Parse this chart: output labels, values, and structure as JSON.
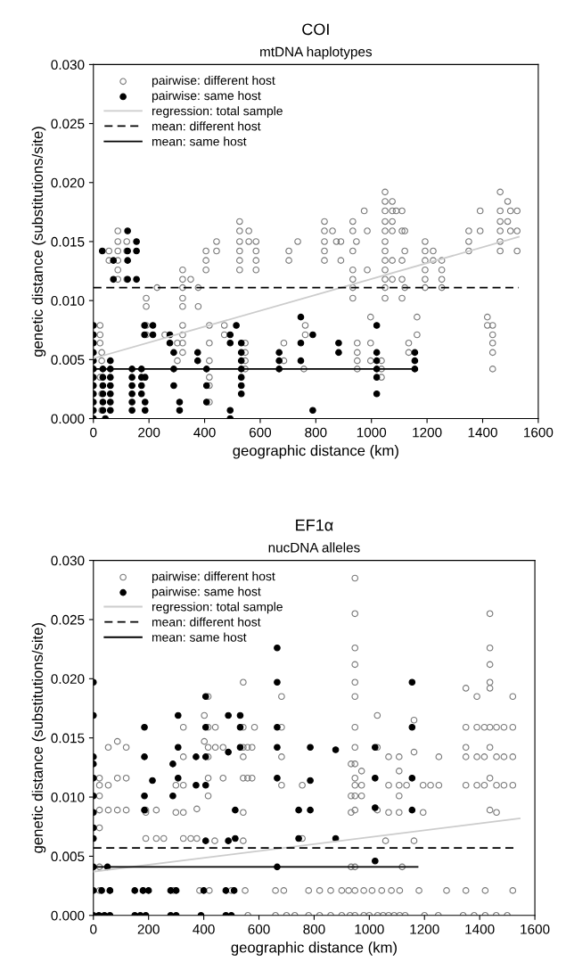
{
  "chart_data": [
    {
      "type": "scatter",
      "title": "COI",
      "subtitle": "mtDNA haplotypes",
      "xlabel": "geographic distance (km)",
      "ylabel": "genetic distance (substitutions/site)",
      "xlim": [
        0,
        1600
      ],
      "xticks": [
        0,
        200,
        400,
        600,
        800,
        1000,
        1200,
        1400,
        1600
      ],
      "ylim": [
        0,
        0.03
      ],
      "yticks": [
        {
          "value": 0,
          "label": "0.000"
        },
        {
          "value": 0.005,
          "label": "0.005"
        },
        {
          "value": 0.01,
          "label": "0.010"
        },
        {
          "value": 0.015,
          "label": "0.015"
        },
        {
          "value": 0.02,
          "label": "0.020"
        },
        {
          "value": 0.025,
          "label": "0.025"
        },
        {
          "value": 0.03,
          "label": "0.030"
        }
      ],
      "grid": false,
      "legend": "top left",
      "series": [
        {
          "name": "pairwise: different host",
          "marker": "circle",
          "color": "#7a7a7a",
          "x": [
            24,
            24,
            24,
            30,
            30,
            24,
            30,
            30,
            56,
            56,
            88,
            88,
            88,
            88,
            88,
            88,
            120,
            120,
            120,
            190,
            190,
            190,
            190,
            229,
            257,
            302,
            302,
            321,
            321,
            321,
            321,
            321,
            321,
            321,
            321,
            321,
            350,
            377,
            377,
            405,
            405,
            405,
            443,
            443,
            417,
            417,
            417,
            417,
            417,
            417,
            471,
            471,
            526,
            526,
            526,
            526,
            526,
            526,
            559,
            559,
            585,
            585,
            585,
            585,
            546,
            546,
            546,
            546,
            685,
            685,
            703,
            703,
            735,
            762,
            762,
            757,
            831,
            831,
            831,
            831,
            831,
            860,
            874,
            890,
            890,
            933,
            933,
            933,
            933,
            933,
            933,
            933,
            946,
            974,
            985,
            985,
            949,
            949,
            949,
            949,
            997,
            997,
            997,
            1049,
            1049,
            1049,
            1049,
            1049,
            1049,
            1049,
            1049,
            1049,
            1049,
            1049,
            1049,
            1075,
            1075,
            1075,
            1075,
            1075,
            1075,
            1089,
            1110,
            1110,
            1110,
            1110,
            1110,
            1120,
            1120,
            1120,
            1036,
            1036,
            1036,
            1134,
            1134,
            1164,
            1164,
            1193,
            1193,
            1193,
            1193,
            1193,
            1193,
            1222,
            1222,
            1253,
            1253,
            1253,
            1253,
            1350,
            1350,
            1350,
            1391,
            1391,
            1417,
            1417,
            1436,
            1436,
            1436,
            1436,
            1436,
            1463,
            1463,
            1463,
            1463,
            1463,
            1463,
            1490,
            1490,
            1500,
            1500,
            1524,
            1524,
            1524
          ],
          "values": [
            0.0079,
            0.0071,
            0.0064,
            0.0056,
            0.0049,
            0.0035,
            0.0021,
            0.0007,
            0.0142,
            0.0134,
            0.0159,
            0.015,
            0.0142,
            0.0134,
            0.0126,
            0.0118,
            0.015,
            0.0142,
            0.0118,
            0.0102,
            0.0095,
            0.0079,
            0.0071,
            0.0111,
            0.0071,
            0.0064,
            0.0049,
            0.0126,
            0.0118,
            0.0111,
            0.0102,
            0.0095,
            0.0079,
            0.0071,
            0.0064,
            0.0056,
            0.0118,
            0.0111,
            0.0095,
            0.0142,
            0.0134,
            0.0126,
            0.015,
            0.0142,
            0.0079,
            0.0064,
            0.0049,
            0.0035,
            0.0028,
            0.0014,
            0.0079,
            0.0071,
            0.0167,
            0.0159,
            0.015,
            0.0142,
            0.0134,
            0.0126,
            0.0159,
            0.015,
            0.015,
            0.0142,
            0.0134,
            0.0126,
            0.0064,
            0.0056,
            0.0049,
            0.0042,
            0.0064,
            0.0049,
            0.0142,
            0.0134,
            0.015,
            0.0079,
            0.0071,
            0.0042,
            0.0167,
            0.0159,
            0.015,
            0.0142,
            0.0134,
            0.0159,
            0.015,
            0.015,
            0.0134,
            0.0167,
            0.0159,
            0.0142,
            0.0126,
            0.0118,
            0.0111,
            0.0102,
            0.015,
            0.0176,
            0.0159,
            0.0126,
            0.0064,
            0.0056,
            0.0049,
            0.0042,
            0.0086,
            0.0064,
            0.0049,
            0.0192,
            0.0184,
            0.0176,
            0.0167,
            0.0159,
            0.015,
            0.0142,
            0.0134,
            0.0126,
            0.0118,
            0.0111,
            0.0102,
            0.0184,
            0.0176,
            0.0167,
            0.0159,
            0.0134,
            0.0118,
            0.0176,
            0.0176,
            0.0159,
            0.0134,
            0.0118,
            0.0102,
            0.0159,
            0.0142,
            0.0111,
            0.0049,
            0.0042,
            0.0035,
            0.0064,
            0.0056,
            0.0086,
            0.0071,
            0.015,
            0.0142,
            0.0134,
            0.0126,
            0.0118,
            0.0111,
            0.0142,
            0.0134,
            0.0134,
            0.0126,
            0.0118,
            0.0111,
            0.0159,
            0.015,
            0.0142,
            0.0176,
            0.0159,
            0.0086,
            0.0079,
            0.0079,
            0.0071,
            0.0064,
            0.0056,
            0.0042,
            0.0192,
            0.0176,
            0.0167,
            0.0159,
            0.015,
            0.0142,
            0.0184,
            0.0167,
            0.0176,
            0.0159,
            0.0176,
            0.0159,
            0.0142
          ]
        },
        {
          "name": "pairwise: same host",
          "marker": "circle",
          "color": "#000000",
          "x": [
            0,
            0,
            0,
            0,
            0,
            0,
            0,
            0,
            0,
            0,
            0,
            0,
            34,
            34,
            34,
            34,
            34,
            34,
            43,
            61,
            61,
            61,
            61,
            61,
            61,
            61,
            32,
            72,
            123,
            155,
            123,
            155,
            123,
            72,
            123,
            155,
            139,
            139,
            139,
            139,
            139,
            139,
            173,
            173,
            173,
            173,
            186,
            186,
            186,
            184,
            184,
            214,
            214,
            275,
            275,
            289,
            289,
            289,
            310,
            310,
            375,
            375,
            407,
            407,
            407,
            492,
            492,
            492,
            492,
            514,
            532,
            532,
            532,
            532,
            532,
            532,
            532,
            668,
            668,
            668,
            746,
            746,
            746,
            789,
            789,
            882,
            882,
            1019,
            1019,
            1019,
            1019,
            1019,
            1019,
            1156,
            1156,
            1156
          ],
          "values": [
            0.0079,
            0.0071,
            0.0064,
            0.0056,
            0.0049,
            0.0042,
            0.0035,
            0.0028,
            0.0021,
            0.0014,
            0.0007,
            0,
            0.0042,
            0.0035,
            0.0028,
            0.0021,
            0.0014,
            0.0007,
            0,
            0.0049,
            0.0042,
            0.0035,
            0.0028,
            0.0021,
            0.0014,
            0.0007,
            0.0142,
            0.0134,
            0.0159,
            0.015,
            0.0142,
            0.0142,
            0.0134,
            0.0118,
            0.0118,
            0.0118,
            0.0042,
            0.0035,
            0.0028,
            0.0021,
            0.0014,
            0.0007,
            0.0042,
            0.0035,
            0.0028,
            0.0021,
            0.0035,
            0.0014,
            0.0007,
            0.0079,
            0.0071,
            0.0079,
            0.0071,
            0.0071,
            0.0064,
            0.0056,
            0.0042,
            0.0028,
            0.0014,
            0.0007,
            0.0056,
            0.0049,
            0.0042,
            0.0028,
            0.0014,
            0.0071,
            0.0064,
            0.0007,
            0,
            0.0079,
            0.0064,
            0.0056,
            0.0049,
            0.0042,
            0.0035,
            0.0028,
            0.0021,
            0.0056,
            0.0049,
            0.0042,
            0.0086,
            0.0064,
            0.0049,
            0.0071,
            0.0007,
            0.0064,
            0.0056,
            0.0079,
            0.0056,
            0.0049,
            0.0042,
            0.0035,
            0.0021,
            0.0056,
            0.0049,
            0.0042
          ]
        },
        {
          "name": "regression: total sample",
          "type": "line",
          "line_style": "solid",
          "color": "#cccccc",
          "x": [
            0,
            1530
          ],
          "values": [
            0.0051,
            0.0154
          ]
        },
        {
          "name": "mean: different host",
          "type": "line",
          "line_style": "dashed",
          "color": "#000000",
          "x": [
            0,
            1530
          ],
          "values": [
            0.0111,
            0.0111
          ]
        },
        {
          "name": "mean: same host",
          "type": "line",
          "line_style": "solid",
          "color": "#000000",
          "x": [
            0,
            1160
          ],
          "values": [
            0.0042,
            0.0042
          ]
        }
      ]
    },
    {
      "type": "scatter",
      "title": "EF1α",
      "subtitle": "nucDNA alleles",
      "xlabel": "geographic distance (km)",
      "ylabel": "genetic distance (substitutions/site)",
      "xlim": [
        0,
        1600
      ],
      "xticks": [
        0,
        200,
        400,
        600,
        800,
        1000,
        1200,
        1400,
        1600
      ],
      "ylim": [
        0,
        0.03
      ],
      "yticks": [
        {
          "value": 0,
          "label": "0.000"
        },
        {
          "value": 0.005,
          "label": "0.005"
        },
        {
          "value": 0.01,
          "label": "0.010"
        },
        {
          "value": 0.015,
          "label": "0.015"
        },
        {
          "value": 0.02,
          "label": "0.020"
        },
        {
          "value": 0.025,
          "label": "0.025"
        },
        {
          "value": 0.03,
          "label": "0.030"
        }
      ],
      "grid": false,
      "legend": "top left",
      "series": [
        {
          "name": "pairwise: different host",
          "marker": "circle",
          "color": "#7a7a7a",
          "x": [
            948,
            948,
            948,
            948,
            948,
            948,
            948,
            948,
            948,
            948,
            948,
            948,
            948,
            948,
            948,
            948,
            1437,
            1437,
            1437,
            1437,
            1437,
            1437,
            1437,
            1437,
            1437,
            1350,
            1350,
            1350,
            1350,
            1350,
            1390,
            1390,
            1390,
            1390,
            1417,
            1417,
            1417,
            1461,
            1461,
            1461,
            1461,
            1488,
            1488,
            1488,
            1520,
            1520,
            1520,
            1520,
            543,
            682,
            682,
            682,
            682,
            416,
            416,
            416,
            416,
            416,
            416,
            402,
            402,
            442,
            442,
            470,
            470,
            543,
            543,
            543,
            543,
            543,
            543,
            559,
            559,
            575,
            575,
            584,
            22,
            22,
            22,
            22,
            22,
            22,
            54,
            54,
            54,
            87,
            87,
            87,
            119,
            119,
            119,
            190,
            190,
            190,
            228,
            228,
            255,
            299,
            299,
            326,
            326,
            326,
            326,
            326,
            353,
            375,
            375,
            440,
            757,
            757,
            934,
            934,
            934,
            934,
            972,
            972,
            972,
            1029,
            1029,
            1029,
            1070,
            1070,
            1070,
            1108,
            1108,
            1108,
            1108,
            1108,
            1135,
            1162,
            1162,
            1162,
            1195,
            1195,
            1222,
            1252,
            1252,
            1059,
            1119,
            22,
            60,
            180,
            290,
            385,
            420,
            500,
            550,
            660,
            690,
            780,
            820,
            860,
            900,
            925,
            980,
            1010,
            1045,
            1080,
            1110,
            1180,
            1280,
            1350,
            1420,
            1520,
            560,
            660,
            700,
            730,
            780,
            820,
            860,
            900,
            930,
            980,
            1000,
            1030,
            1050,
            1070,
            1090,
            1110,
            1130,
            1200,
            1250,
            1340,
            1380,
            1420,
            1460,
            1500
          ],
          "values": [
            0.0285,
            0.0255,
            0.0226,
            0.0212,
            0.0197,
            0.0185,
            0.0159,
            0.0142,
            0.0128,
            0.0116,
            0.011,
            0.0101,
            0.0089,
            0.0041,
            0.0021,
            0,
            0.0255,
            0.0226,
            0.0212,
            0.0197,
            0.0192,
            0.0159,
            0.0142,
            0.0116,
            0.0089,
            0.0192,
            0.0159,
            0.0142,
            0.0134,
            0.011,
            0.0185,
            0.0159,
            0.0134,
            0.011,
            0.0159,
            0.0134,
            0.011,
            0.0159,
            0.0134,
            0.011,
            0.0087,
            0.0159,
            0.0134,
            0.011,
            0.0185,
            0.0159,
            0.0134,
            0.011,
            0.0197,
            0.0185,
            0.0159,
            0.0134,
            0.011,
            0.0185,
            0.0159,
            0.0142,
            0.0134,
            0.0116,
            0.0101,
            0.0169,
            0.0147,
            0.0159,
            0.0142,
            0.0142,
            0.0116,
            0.0159,
            0.0142,
            0.0134,
            0.0116,
            0.0087,
            0.0063,
            0.0142,
            0.0116,
            0.0142,
            0.0116,
            0.0159,
            0.0116,
            0.011,
            0.0101,
            0.0089,
            0.0074,
            0.0041,
            0.0142,
            0.011,
            0.0089,
            0.0147,
            0.0116,
            0.0089,
            0.0142,
            0.0116,
            0.0089,
            0.0089,
            0.0087,
            0.0065,
            0.0089,
            0.0065,
            0.0065,
            0.011,
            0.0087,
            0.0159,
            0.0134,
            0.011,
            0.0087,
            0.0065,
            0.0065,
            0.009,
            0.0065,
            0.0063,
            0.011,
            0.0065,
            0.0128,
            0.0101,
            0.0087,
            0.0041,
            0.0122,
            0.011,
            0.0101,
            0.0169,
            0.0142,
            0.0089,
            0.0134,
            0.011,
            0.0087,
            0.0134,
            0.0122,
            0.011,
            0.0101,
            0.0087,
            0.011,
            0.0165,
            0.0138,
            0.0063,
            0.011,
            0.0087,
            0.011,
            0.0134,
            0.011,
            0.0063,
            0.0041,
            0.0021,
            0.0021,
            0.0021,
            0.0021,
            0.0021,
            0.0021,
            0.0021,
            0.0021,
            0.0021,
            0.0021,
            0.0021,
            0.0021,
            0.0021,
            0.0021,
            0.0021,
            0.0021,
            0.0021,
            0.0021,
            0.0021,
            0.0021,
            0.0021,
            0.0021,
            0.0021,
            0.0021,
            0.0021,
            0,
            0,
            0,
            0,
            0,
            0,
            0,
            0,
            0,
            0,
            0,
            0,
            0,
            0,
            0,
            0,
            0,
            0,
            0,
            0,
            0,
            0,
            0,
            0
          ]
        },
        {
          "name": "pairwise: same host",
          "marker": "circle",
          "color": "#000000",
          "x": [
            0,
            0,
            0,
            0,
            0,
            0,
            0,
            0,
            0,
            0,
            0,
            0,
            51,
            185,
            185,
            185,
            185,
            214,
            288,
            288,
            307,
            307,
            307,
            372,
            372,
            407,
            407,
            407,
            407,
            407,
            489,
            489,
            489,
            514,
            514,
            532,
            532,
            532,
            666,
            666,
            666,
            666,
            666,
            666,
            744,
            744,
            786,
            786,
            786,
            878,
            878,
            1021,
            1021,
            1021,
            1021,
            1155,
            1155,
            1155,
            1155,
            30,
            60,
            150,
            180,
            200,
            280,
            300,
            400,
            480,
            510,
            20,
            40,
            60,
            150,
            170,
            190,
            280,
            300,
            390,
            480,
            500
          ],
          "values": [
            0.0197,
            0.0169,
            0.0134,
            0.0128,
            0.0116,
            0.0101,
            0.0087,
            0.0074,
            0.0065,
            0.0041,
            0.0021,
            0,
            0.0041,
            0.0159,
            0.0134,
            0.0101,
            0.0089,
            0.0114,
            0.0128,
            0.0101,
            0.0169,
            0.0142,
            0.0116,
            0.0134,
            0.011,
            0.0185,
            0.0159,
            0.0134,
            0.011,
            0.0063,
            0.0169,
            0.0138,
            0.0063,
            0.0065,
            0.0089,
            0.0169,
            0.0159,
            0.0142,
            0.0226,
            0.0197,
            0.0159,
            0.0142,
            0.0116,
            0.0041,
            0.0089,
            0.0065,
            0.0142,
            0.0114,
            0.0089,
            0.014,
            0.0065,
            0.0142,
            0.0116,
            0.0091,
            0.0046,
            0.0197,
            0.0159,
            0.0116,
            0.0089,
            0.0021,
            0.0021,
            0.0021,
            0.0021,
            0.0021,
            0.0021,
            0.0021,
            0.0021,
            0.0021,
            0.0021,
            0,
            0,
            0,
            0,
            0,
            0,
            0,
            0,
            0,
            0,
            0
          ]
        },
        {
          "name": "regression: total sample",
          "type": "line",
          "line_style": "solid",
          "color": "#cccccc",
          "x": [
            0,
            1545
          ],
          "values": [
            0.0037,
            0.0082
          ]
        },
        {
          "name": "mean: different host",
          "type": "line",
          "line_style": "dashed",
          "color": "#000000",
          "x": [
            0,
            1530
          ],
          "values": [
            0.0057,
            0.0057
          ]
        },
        {
          "name": "mean: same host",
          "type": "line",
          "line_style": "solid",
          "color": "#000000",
          "x": [
            0,
            1175
          ],
          "values": [
            0.0041,
            0.0041
          ]
        }
      ]
    }
  ]
}
